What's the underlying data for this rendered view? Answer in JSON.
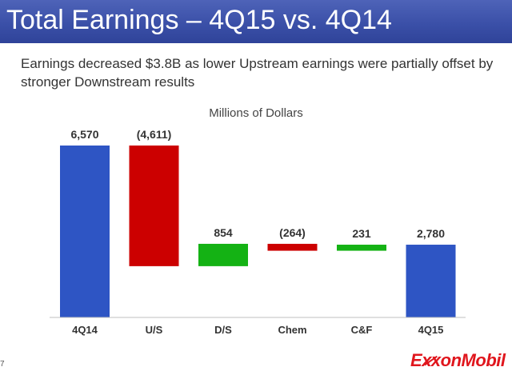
{
  "header": {
    "title": "Total Earnings – 4Q15 vs. 4Q14"
  },
  "subtitle": "Earnings decreased $3.8B as lower Upstream earnings were partially offset by stronger Downstream results",
  "page_number": "7",
  "logo_text": "ExxonMobil",
  "colors": {
    "total": "#2e55c4",
    "decrease": "#cc0000",
    "increase": "#14b214",
    "title_bar": "#3b50a8",
    "logo": "#e0161d"
  },
  "chart_data": {
    "type": "bar",
    "subtype": "waterfall",
    "title": "Millions of Dollars",
    "categories": [
      "4Q14",
      "U/S",
      "D/S",
      "Chem",
      "C&F",
      "4Q15"
    ],
    "values": [
      6570,
      -4611,
      854,
      -264,
      231,
      2780
    ],
    "value_labels": [
      "6,570",
      "(4,611)",
      "854",
      "(264)",
      "231",
      "2,780"
    ],
    "bar_kinds": [
      "total",
      "decrease",
      "increase",
      "decrease",
      "increase",
      "total"
    ],
    "ylim": [
      0,
      6570
    ],
    "grid": false,
    "legend": "none"
  }
}
